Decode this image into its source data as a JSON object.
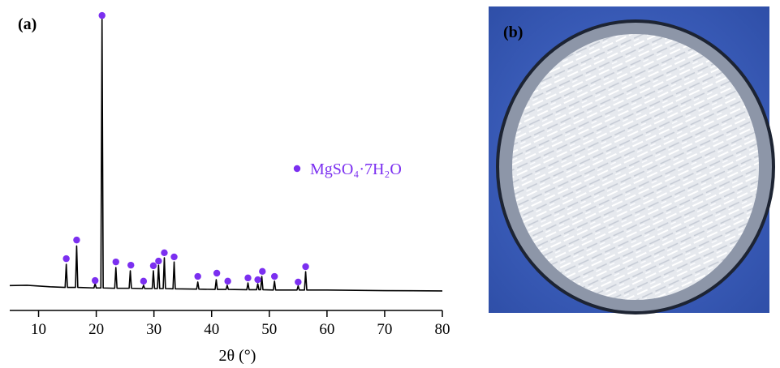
{
  "chart_data": {
    "type": "line",
    "panel_label": "(a)",
    "x_label": "2θ (°)",
    "xlim": [
      5,
      80
    ],
    "xticks": [
      10,
      20,
      30,
      40,
      50,
      60,
      70,
      80
    ],
    "ylim": [
      0,
      100
    ],
    "series": [
      {
        "color": "#000000",
        "x": [
          5,
          8,
          12,
          14.6,
          14.8,
          15.0,
          16.4,
          16.6,
          16.8,
          19.6,
          19.8,
          20.0,
          20.8,
          21.0,
          21.2,
          23.2,
          23.4,
          23.6,
          25.7,
          25.9,
          26.1,
          28.0,
          28.2,
          28.4,
          29.7,
          29.9,
          30.1,
          30.6,
          30.8,
          31.0,
          31.6,
          31.8,
          32.0,
          33.3,
          33.5,
          33.7,
          37.4,
          37.6,
          37.8,
          40.6,
          40.8,
          41.0,
          42.5,
          42.7,
          42.9,
          46.1,
          46.3,
          46.5,
          47.8,
          48.0,
          48.2,
          48.5,
          48.7,
          48.9,
          50.7,
          50.9,
          51.1,
          54.8,
          55.0,
          55.2,
          56.1,
          56.3,
          56.5,
          60,
          70,
          80
        ],
        "values": [
          8.4,
          8.5,
          8.0,
          7.8,
          15.6,
          7.8,
          7.8,
          21.8,
          7.8,
          7.6,
          9.1,
          7.6,
          7.6,
          98.4,
          7.6,
          7.5,
          14.5,
          7.5,
          7.5,
          13.4,
          7.5,
          7.4,
          8.5,
          7.4,
          7.4,
          13.4,
          7.4,
          7.4,
          15.3,
          7.4,
          7.4,
          17.8,
          7.4,
          7.3,
          16.4,
          7.3,
          7.2,
          9.6,
          7.2,
          7.1,
          10.4,
          7.1,
          7.1,
          8.5,
          7.1,
          7.0,
          9.3,
          7.0,
          7.0,
          9.0,
          7.0,
          7.0,
          11.5,
          7.0,
          6.9,
          9.9,
          6.9,
          6.9,
          8.3,
          6.9,
          6.9,
          13.1,
          6.9,
          6.9,
          6.7,
          6.6
        ]
      },
      {
        "name": "MgSO₄·7H₂O",
        "color": "#7b2ff0",
        "marker": "dot",
        "x": [
          14.8,
          16.6,
          19.8,
          21.0,
          23.4,
          26.0,
          28.2,
          29.9,
          30.8,
          31.8,
          33.5,
          37.6,
          40.9,
          42.8,
          46.3,
          48.0,
          48.8,
          50.9,
          55.0,
          56.3
        ],
        "values": [
          17.5,
          23.8,
          10.1,
          99.7,
          16.4,
          15.3,
          9.9,
          15.1,
          16.7,
          19.5,
          18.1,
          11.5,
          12.6,
          9.9,
          11.0,
          10.4,
          13.2,
          11.5,
          9.6,
          14.8
        ]
      }
    ]
  },
  "photo": {
    "panel_label": "(b)"
  }
}
